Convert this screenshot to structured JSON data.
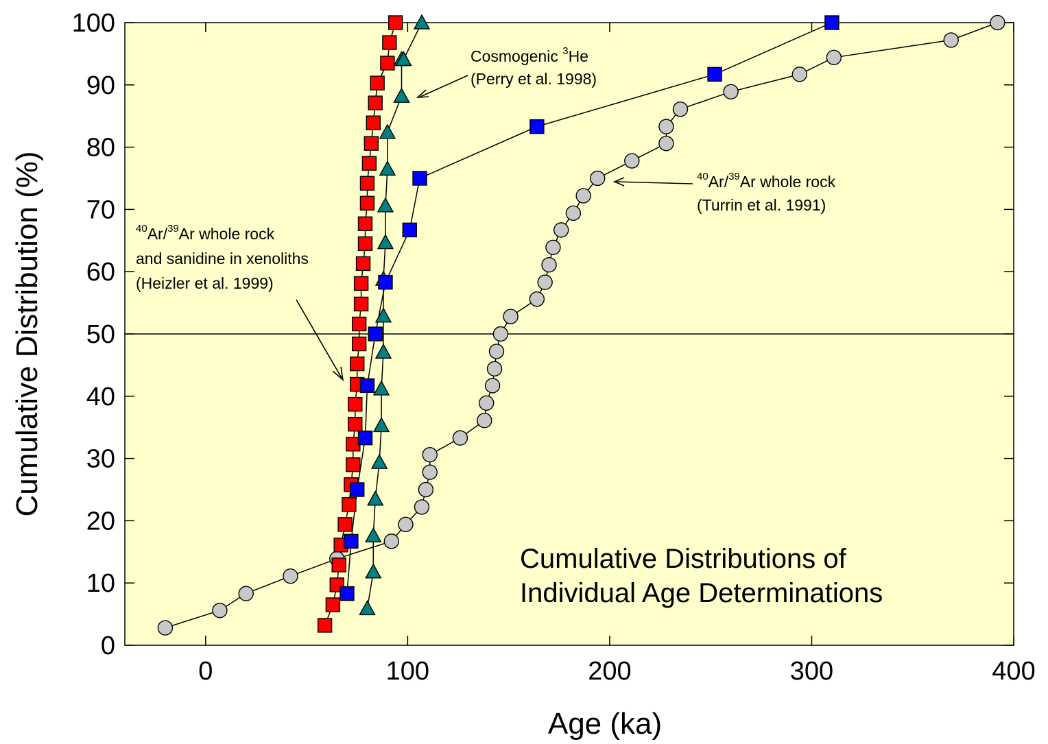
{
  "chart_data": {
    "type": "scatter",
    "xlabel": "Age (ka)",
    "ylabel": "Cumulative Distribution (%)",
    "xlim": [
      -40,
      400
    ],
    "ylim": [
      0,
      100
    ],
    "x_ticks": [
      0,
      100,
      200,
      300,
      400
    ],
    "y_ticks": [
      0,
      10,
      20,
      30,
      40,
      50,
      60,
      70,
      80,
      90,
      100
    ],
    "x_tick_labels": [
      "0",
      "100",
      "200",
      "300",
      "400"
    ],
    "y_tick_labels": [
      "0",
      "10",
      "20",
      "30",
      "40",
      "50",
      "60",
      "70",
      "80",
      "90",
      "100"
    ],
    "background_color": "#ffffcc",
    "reference_line_y": 50,
    "grid": false,
    "series": [
      {
        "marker": "circle",
        "color": "#c8c8c8",
        "x": [
          -20,
          7,
          20,
          42,
          65,
          92,
          99,
          107,
          109,
          111,
          111,
          126,
          138,
          139,
          142,
          143,
          144,
          146,
          151,
          164,
          168,
          170,
          172,
          176,
          182,
          187,
          194,
          211,
          228,
          228,
          235,
          260,
          294,
          311,
          369,
          392
        ],
        "y": [
          2.8,
          5.6,
          8.3,
          11.1,
          13.9,
          16.7,
          19.4,
          22.2,
          25.0,
          27.8,
          30.6,
          33.3,
          36.1,
          38.9,
          41.7,
          44.4,
          47.2,
          50.0,
          52.8,
          55.6,
          58.3,
          61.1,
          63.9,
          66.7,
          69.4,
          72.2,
          75.0,
          77.8,
          80.6,
          83.3,
          86.1,
          88.9,
          91.7,
          94.4,
          97.2,
          100
        ]
      },
      {
        "marker": "square",
        "color": "#ff0000",
        "x": [
          59,
          63,
          65,
          66,
          67,
          69,
          71,
          72,
          73,
          73,
          74,
          74,
          75,
          75,
          76,
          76,
          77,
          77,
          78,
          79,
          79,
          80,
          80,
          81,
          82,
          83,
          84,
          85,
          90,
          91,
          94
        ],
        "y": [
          3.2,
          6.5,
          9.7,
          12.9,
          16.1,
          19.4,
          22.6,
          25.8,
          29.0,
          32.3,
          35.5,
          38.7,
          41.9,
          45.2,
          48.4,
          51.6,
          54.8,
          58.1,
          61.3,
          64.5,
          67.7,
          71.0,
          74.2,
          77.4,
          80.6,
          83.9,
          87.1,
          90.3,
          93.5,
          96.8,
          100
        ]
      },
      {
        "marker": "triangle",
        "color": "#008080",
        "x": [
          80,
          83,
          83,
          84,
          86,
          87,
          87,
          88,
          88,
          88,
          89,
          89,
          90,
          90,
          97,
          97,
          98,
          107
        ],
        "y": [
          5.9,
          11.8,
          17.6,
          23.5,
          29.4,
          35.3,
          41.2,
          47.1,
          52.9,
          58.8,
          64.7,
          70.6,
          76.5,
          82.4,
          88.2,
          94.1,
          94.1,
          100
        ]
      },
      {
        "marker": "square",
        "color": "#0000ff",
        "x": [
          70,
          72,
          75,
          79,
          80,
          84,
          89,
          101,
          106,
          164,
          252,
          310
        ],
        "y": [
          8.3,
          16.7,
          25.0,
          33.3,
          41.7,
          50.0,
          58.3,
          66.7,
          75.0,
          83.3,
          91.7,
          100
        ]
      }
    ],
    "annotations": {
      "helium": {
        "line1_pre": "Cosmogenic ",
        "line1_sup": "3",
        "line1_post": "He",
        "line2": "(Perry et al. 1998)"
      },
      "turrin": {
        "sup1": "40",
        "mid": "Ar/",
        "sup2": "39",
        "post": "Ar whole rock",
        "line2": "(Turrin et al. 1991)"
      },
      "heizler": {
        "sup1": "40",
        "mid": "Ar/",
        "sup2": "39",
        "post": "Ar whole rock",
        "line2": "and sanidine in xenoliths",
        "line3": "(Heizler et al. 1999)"
      },
      "title_line1": "Cumulative Distributions of",
      "title_line2": "Individual Age Determinations"
    }
  }
}
